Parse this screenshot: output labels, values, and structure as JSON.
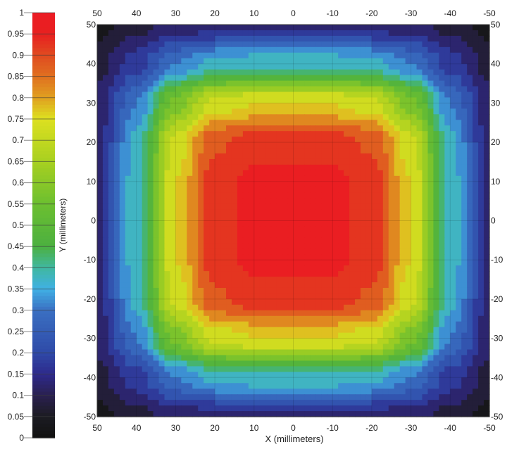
{
  "chart_data": {
    "type": "heatmap",
    "title": "",
    "xlabel": "X (millimeters)",
    "ylabel": "Y (millimeters)",
    "xlim": [
      50,
      -50
    ],
    "ylim": [
      -50,
      50
    ],
    "x_ticks": [
      "50",
      "40",
      "30",
      "20",
      "10",
      "0",
      "-10",
      "-20",
      "-30",
      "-40",
      "-50"
    ],
    "y_ticks": [
      "50",
      "40",
      "30",
      "20",
      "10",
      "0",
      "-10",
      "-20",
      "-30",
      "-40",
      "-50"
    ],
    "x": [
      50,
      40,
      30,
      20,
      10,
      0,
      -10,
      -20,
      -30,
      -40,
      -50
    ],
    "y": [
      50,
      40,
      30,
      20,
      10,
      0,
      -10,
      -20,
      -30,
      -40,
      -50
    ],
    "values": [
      [
        0.03,
        0.08,
        0.12,
        0.13,
        0.13,
        0.13,
        0.13,
        0.13,
        0.12,
        0.08,
        0.03
      ],
      [
        0.08,
        0.18,
        0.3,
        0.37,
        0.38,
        0.38,
        0.38,
        0.37,
        0.3,
        0.18,
        0.08
      ],
      [
        0.12,
        0.3,
        0.58,
        0.72,
        0.75,
        0.75,
        0.75,
        0.72,
        0.58,
        0.3,
        0.12
      ],
      [
        0.13,
        0.37,
        0.72,
        0.89,
        0.93,
        0.93,
        0.93,
        0.89,
        0.72,
        0.37,
        0.13
      ],
      [
        0.13,
        0.38,
        0.75,
        0.93,
        0.96,
        0.96,
        0.96,
        0.93,
        0.75,
        0.38,
        0.13
      ],
      [
        0.13,
        0.38,
        0.75,
        0.93,
        0.96,
        0.97,
        0.96,
        0.93,
        0.75,
        0.38,
        0.13
      ],
      [
        0.13,
        0.38,
        0.75,
        0.93,
        0.96,
        0.96,
        0.96,
        0.93,
        0.75,
        0.38,
        0.13
      ],
      [
        0.13,
        0.37,
        0.72,
        0.89,
        0.93,
        0.93,
        0.93,
        0.89,
        0.72,
        0.37,
        0.13
      ],
      [
        0.12,
        0.3,
        0.58,
        0.72,
        0.75,
        0.75,
        0.75,
        0.72,
        0.58,
        0.3,
        0.12
      ],
      [
        0.08,
        0.18,
        0.3,
        0.37,
        0.38,
        0.38,
        0.38,
        0.37,
        0.3,
        0.18,
        0.08
      ],
      [
        0.03,
        0.08,
        0.12,
        0.13,
        0.13,
        0.13,
        0.13,
        0.13,
        0.12,
        0.08,
        0.03
      ]
    ],
    "colorbar": {
      "range": [
        0,
        1
      ],
      "ticks": [
        "0",
        "0.05",
        "0.1",
        "0.15",
        "0.2",
        "0.25",
        "0.3",
        "0.35",
        "0.4",
        "0.45",
        "0.5",
        "0.55",
        "0.6",
        "0.65",
        "0.7",
        "0.75",
        "0.8",
        "0.85",
        "0.9",
        "0.95",
        "1"
      ],
      "colormap": [
        [
          0.0,
          "#111111"
        ],
        [
          0.05,
          "#1c1c22"
        ],
        [
          0.1,
          "#2a2050"
        ],
        [
          0.15,
          "#2e2a8c"
        ],
        [
          0.2,
          "#2f4aa8"
        ],
        [
          0.3,
          "#3a70c2"
        ],
        [
          0.35,
          "#40b0e4"
        ],
        [
          0.4,
          "#40b8a0"
        ],
        [
          0.45,
          "#4cb040"
        ],
        [
          0.55,
          "#6cbf30"
        ],
        [
          0.65,
          "#a8d020"
        ],
        [
          0.75,
          "#dde020"
        ],
        [
          0.8,
          "#e0a020"
        ],
        [
          0.85,
          "#e07020"
        ],
        [
          0.9,
          "#e04a20"
        ],
        [
          0.95,
          "#e82020"
        ],
        [
          1.0,
          "#ec1c24"
        ]
      ]
    },
    "grid": true
  }
}
